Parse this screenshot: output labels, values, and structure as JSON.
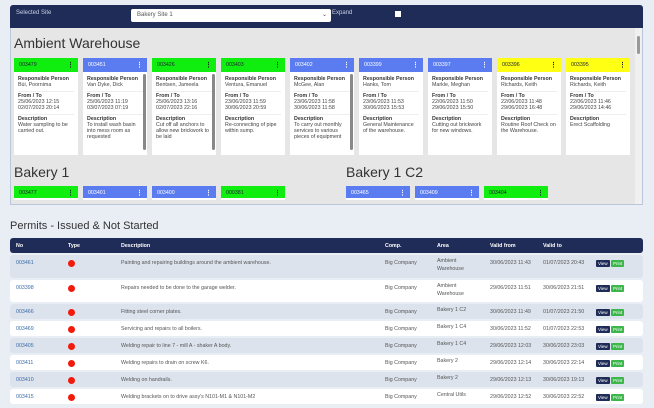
{
  "header": {
    "site_label": "Selected Site",
    "site_value": "Bakery Site 1",
    "expand_label": "Expand",
    "expand_checked": false
  },
  "colors": {
    "green": "#10ee10",
    "blue": "#5a7cf0",
    "yellow": "#ffff14",
    "navy": "#1f2c57"
  },
  "labels": {
    "person": "Responsible Person",
    "fromto": "From / To",
    "desc": "Description"
  },
  "areas": [
    {
      "name": "Ambient Warehouse",
      "cards": [
        {
          "id": "003479",
          "color": "g",
          "person": "Bùi, Poornima",
          "from": "25/06/2023 12:15",
          "to": "02/07/2023 20:14",
          "desc": "Water sampling to be carried out.",
          "scroll": false
        },
        {
          "id": "003451",
          "color": "b",
          "person": "Van Dyke, Dick",
          "from": "25/06/2023 11:19",
          "to": "03/07/2023 07:19",
          "desc": "To install wash basin into mess room as requested",
          "scroll": true
        },
        {
          "id": "003426",
          "color": "g",
          "person": "Bentsen, Jameela",
          "from": "25/06/2023 13:16",
          "to": "02/07/2023 22:16",
          "desc": "Cut off all anchors to allow new brickwork to be laid",
          "scroll": true
        },
        {
          "id": "003403",
          "color": "g",
          "person": "Ventura, Emanuel",
          "from": "23/06/2023 11:59",
          "to": "30/06/2023 20:59",
          "desc": "Re-connecting of pipe within sump.",
          "scroll": false
        },
        {
          "id": "003402",
          "color": "b",
          "person": "McGee, Alan",
          "from": "23/06/2023 11:58",
          "to": "30/06/2023 11:58",
          "desc": "To carry out monthly services to various pieces of equipment",
          "scroll": true
        },
        {
          "id": "003399",
          "color": "b",
          "person": "Hanks, Tom",
          "from": "23/06/2023 11:53",
          "to": "30/06/2023 15:53",
          "desc": "General Maintenance of the warehouse.",
          "scroll": false
        },
        {
          "id": "003397",
          "color": "b",
          "person": "Markle, Meghan",
          "from": "22/06/2023 11:50",
          "to": "29/06/2023 15:50",
          "desc": "Cutting out brickwork for new windows.",
          "scroll": false
        },
        {
          "id": "003396",
          "color": "y",
          "person": "Richards, Keith",
          "from": "22/06/2023 11:48",
          "to": "29/06/2023 16:48",
          "desc": "Routine Roof Check on the Warehouse.",
          "scroll": false
        },
        {
          "id": "003395",
          "color": "y",
          "person": "Richards, Keith",
          "from": "22/06/2023 11:46",
          "to": "29/06/2023 14:46",
          "desc": "Erect Scaffolding",
          "scroll": false
        }
      ]
    },
    {
      "name": "Bakery 1",
      "cards": [
        {
          "id": "003477",
          "color": "g"
        },
        {
          "id": "003401",
          "color": "b"
        },
        {
          "id": "003400",
          "color": "b"
        },
        {
          "id": "000381",
          "color": "g"
        }
      ]
    },
    {
      "name": "Bakery 1 C2",
      "cards": [
        {
          "id": "003465",
          "color": "b"
        },
        {
          "id": "003409",
          "color": "b"
        },
        {
          "id": "003404",
          "color": "g"
        }
      ]
    }
  ],
  "permits": {
    "title": "Permits - Issued & Not Started",
    "columns": [
      "No",
      "Type",
      "Description",
      "Comp.",
      "Area",
      "Valid from",
      "Valid to"
    ],
    "view_label": "View",
    "print_label": "Print",
    "rows": [
      {
        "no": "003461",
        "desc": "Painting and repairing buildings around the ambient warehouse.",
        "comp": "Big Company",
        "area": "Ambient Warehouse",
        "from": "30/06/2023 11:43",
        "to": "01/07/2023 20:43"
      },
      {
        "no": "003398",
        "desc": "Repairs needed to be done to the garage welder.",
        "comp": "Big Company",
        "area": "Ambient Warehouse",
        "from": "29/06/2023 11:51",
        "to": "30/06/2023 21:51"
      },
      {
        "no": "003466",
        "desc": "Fitting steel corner plates.",
        "comp": "Big Company",
        "area": "Bakery 1 C2",
        "from": "30/06/2023 11:49",
        "to": "01/07/2023 21:50"
      },
      {
        "no": "003469",
        "desc": "Servicing and repairs to all boilers.",
        "comp": "Big Company",
        "area": "Bakery 1 C4",
        "from": "30/06/2023 11:52",
        "to": "01/07/2023 22:53"
      },
      {
        "no": "003405",
        "desc": "Welding repair to line 7 - mill A - shaker A body.",
        "comp": "Big Company",
        "area": "Bakery 1 C4",
        "from": "29/06/2023 12:03",
        "to": "30/06/2023 23:03"
      },
      {
        "no": "003411",
        "desc": "Welding repairs to drain on screw K6.",
        "comp": "Big Company",
        "area": "Bakery 2",
        "from": "29/06/2023 12:14",
        "to": "30/06/2023 22:14"
      },
      {
        "no": "003410",
        "desc": "Welding on handrails.",
        "comp": "Big Company",
        "area": "Bakery 2",
        "from": "29/06/2023 12:13",
        "to": "30/06/2023 19:13"
      },
      {
        "no": "003415",
        "desc": "Welding brackets on to drive assy's N101-M1 & N101-M2",
        "comp": "Big Company",
        "area": "Central Utils",
        "from": "29/06/2023 12:52",
        "to": "30/06/2023 22:52"
      }
    ]
  }
}
